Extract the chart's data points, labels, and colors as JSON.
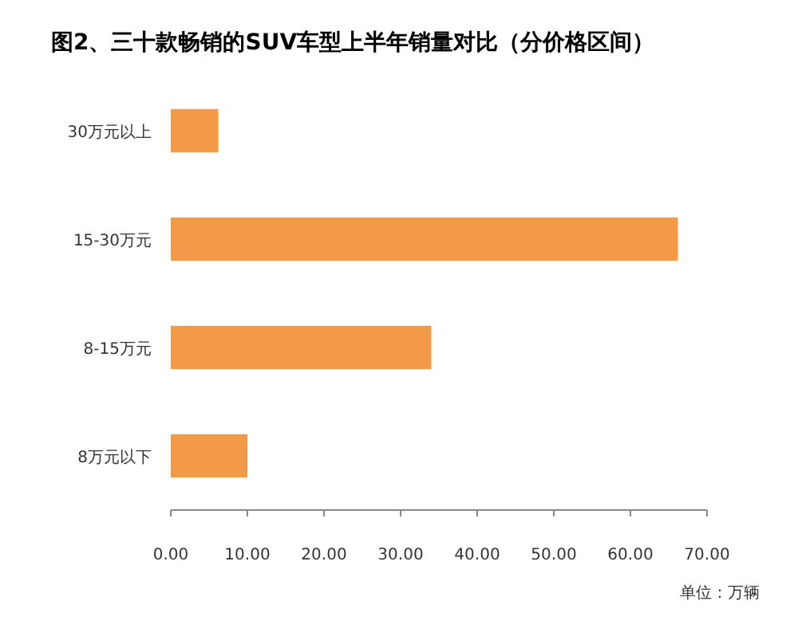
{
  "chart_data": {
    "type": "bar",
    "orientation": "horizontal",
    "title": "图2、三十款畅销的SUV车型上半年销量对比（分价格区间）",
    "categories": [
      "30万元以上",
      "15-30万元",
      "8-15万元",
      "8万元以下"
    ],
    "values": [
      6.2,
      66.2,
      34.0,
      10.0
    ],
    "color": "#f39a48",
    "xlim": [
      0,
      70
    ],
    "xticks": [
      {
        "value": 0,
        "label": "0.00"
      },
      {
        "value": 10,
        "label": "10.00"
      },
      {
        "value": 20,
        "label": "20.00"
      },
      {
        "value": 30,
        "label": "30.00"
      },
      {
        "value": 40,
        "label": "40.00"
      },
      {
        "value": 50,
        "label": "50.00"
      },
      {
        "value": 60,
        "label": "60.00"
      },
      {
        "value": 70,
        "label": "70.00"
      }
    ],
    "grid": false,
    "annotations": [
      "单位：万辆"
    ]
  }
}
